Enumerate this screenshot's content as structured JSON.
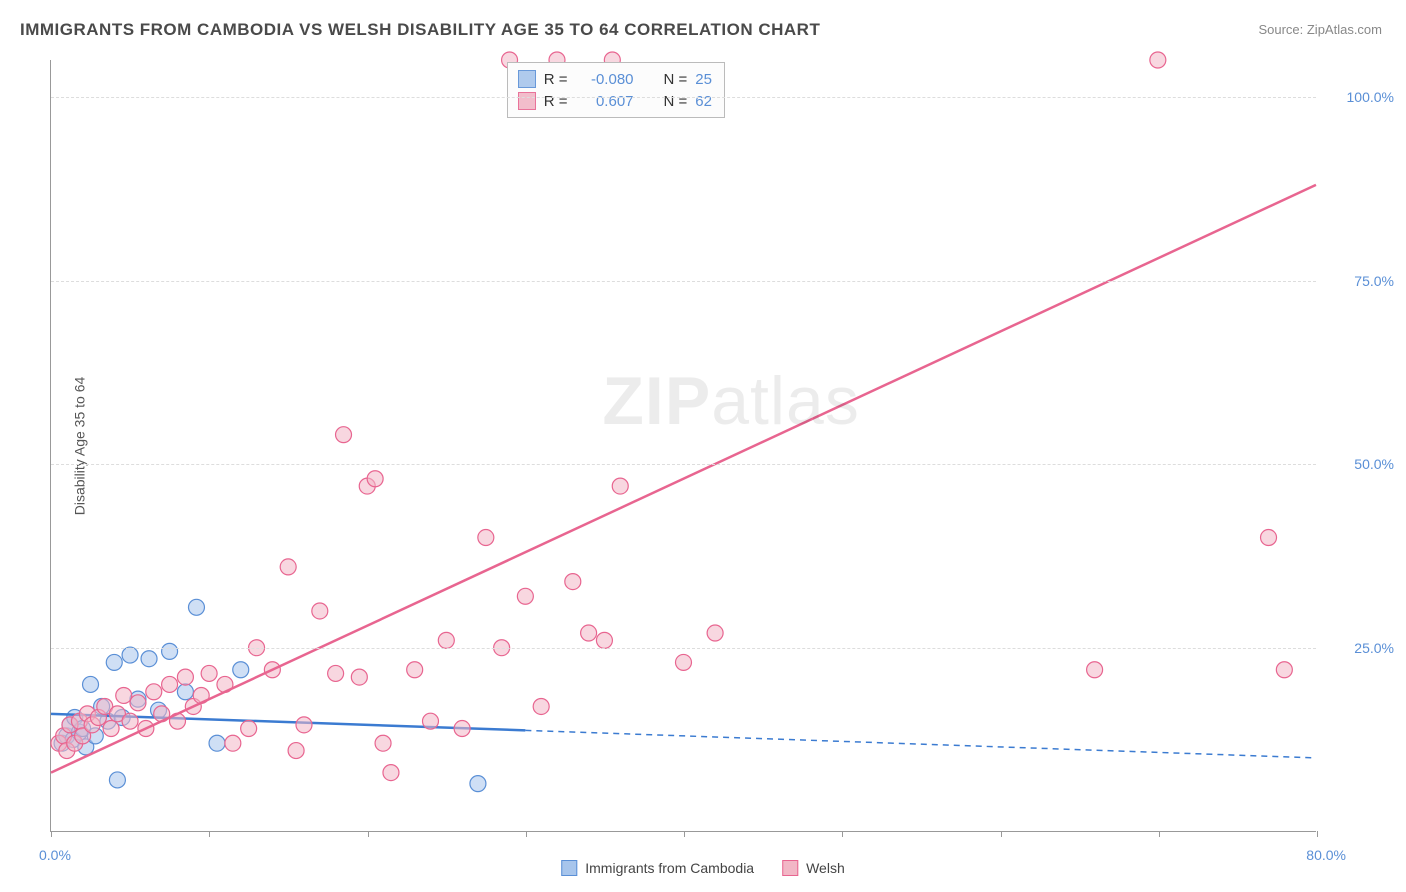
{
  "title": "IMMIGRANTS FROM CAMBODIA VS WELSH DISABILITY AGE 35 TO 64 CORRELATION CHART",
  "source_label": "Source: ",
  "source_name": "ZipAtlas.com",
  "y_axis_label": "Disability Age 35 to 64",
  "watermark_bold": "ZIP",
  "watermark_light": "atlas",
  "chart": {
    "type": "scatter",
    "background_color": "#ffffff",
    "grid_color": "#dddddd",
    "axis_color": "#999999",
    "tick_label_color": "#5a8fd6",
    "xlim": [
      0,
      80
    ],
    "ylim": [
      0,
      105
    ],
    "x_ticks": [
      0,
      10,
      20,
      30,
      40,
      50,
      60,
      70,
      80
    ],
    "x_min_label": "0.0%",
    "x_max_label": "80.0%",
    "y_ticks": [
      {
        "value": 25,
        "label": "25.0%"
      },
      {
        "value": 50,
        "label": "50.0%"
      },
      {
        "value": 75,
        "label": "75.0%"
      },
      {
        "value": 100,
        "label": "100.0%"
      }
    ],
    "series": [
      {
        "id": "cambodia",
        "label": "Immigrants from Cambodia",
        "fill": "#a7c5ec",
        "stroke": "#5a8fd6",
        "fill_opacity": 0.55,
        "marker_radius": 8,
        "R": "-0.080",
        "N": "25",
        "regression": {
          "x1": 0,
          "y1": 16,
          "x2": 80,
          "y2": 10,
          "solid_until_x": 30,
          "color": "#3b7bd1",
          "line_width": 2.5,
          "dash": "6,5"
        },
        "points": [
          {
            "x": 0.7,
            "y": 12
          },
          {
            "x": 1.0,
            "y": 13
          },
          {
            "x": 1.2,
            "y": 14.5
          },
          {
            "x": 1.4,
            "y": 12.5
          },
          {
            "x": 1.5,
            "y": 15.5
          },
          {
            "x": 1.8,
            "y": 13.5
          },
          {
            "x": 2.0,
            "y": 14
          },
          {
            "x": 2.2,
            "y": 11.5
          },
          {
            "x": 2.5,
            "y": 20
          },
          {
            "x": 2.8,
            "y": 13
          },
          {
            "x": 3.2,
            "y": 17
          },
          {
            "x": 3.6,
            "y": 15
          },
          {
            "x": 4.0,
            "y": 23
          },
          {
            "x": 4.2,
            "y": 7
          },
          {
            "x": 4.5,
            "y": 15.5
          },
          {
            "x": 5.0,
            "y": 24
          },
          {
            "x": 5.5,
            "y": 18
          },
          {
            "x": 6.2,
            "y": 23.5
          },
          {
            "x": 6.8,
            "y": 16.5
          },
          {
            "x": 7.5,
            "y": 24.5
          },
          {
            "x": 8.5,
            "y": 19
          },
          {
            "x": 9.2,
            "y": 30.5
          },
          {
            "x": 10.5,
            "y": 12
          },
          {
            "x": 12,
            "y": 22
          },
          {
            "x": 27,
            "y": 6.5
          }
        ]
      },
      {
        "id": "welsh",
        "label": "Welsh",
        "fill": "#f2b7c6",
        "stroke": "#e86590",
        "fill_opacity": 0.55,
        "marker_radius": 8,
        "R": "0.607",
        "N": "62",
        "regression": {
          "x1": 0,
          "y1": 8,
          "x2": 80,
          "y2": 88,
          "solid_until_x": 80,
          "color": "#e86590",
          "line_width": 2.5,
          "dash": null
        },
        "points": [
          {
            "x": 0.5,
            "y": 12
          },
          {
            "x": 0.8,
            "y": 13
          },
          {
            "x": 1.0,
            "y": 11
          },
          {
            "x": 1.2,
            "y": 14.5
          },
          {
            "x": 1.5,
            "y": 12
          },
          {
            "x": 1.8,
            "y": 15
          },
          {
            "x": 2.0,
            "y": 13
          },
          {
            "x": 2.3,
            "y": 16
          },
          {
            "x": 2.6,
            "y": 14.5
          },
          {
            "x": 3.0,
            "y": 15.5
          },
          {
            "x": 3.4,
            "y": 17
          },
          {
            "x": 3.8,
            "y": 14
          },
          {
            "x": 4.2,
            "y": 16
          },
          {
            "x": 4.6,
            "y": 18.5
          },
          {
            "x": 5.0,
            "y": 15
          },
          {
            "x": 5.5,
            "y": 17.5
          },
          {
            "x": 6.0,
            "y": 14
          },
          {
            "x": 6.5,
            "y": 19
          },
          {
            "x": 7.0,
            "y": 16
          },
          {
            "x": 7.5,
            "y": 20
          },
          {
            "x": 8.0,
            "y": 15
          },
          {
            "x": 8.5,
            "y": 21
          },
          {
            "x": 9.0,
            "y": 17
          },
          {
            "x": 9.5,
            "y": 18.5
          },
          {
            "x": 10.0,
            "y": 21.5
          },
          {
            "x": 11.0,
            "y": 20
          },
          {
            "x": 11.5,
            "y": 12
          },
          {
            "x": 12.5,
            "y": 14
          },
          {
            "x": 13.0,
            "y": 25
          },
          {
            "x": 14.0,
            "y": 22
          },
          {
            "x": 15.0,
            "y": 36
          },
          {
            "x": 15.5,
            "y": 11
          },
          {
            "x": 16.0,
            "y": 14.5
          },
          {
            "x": 17.0,
            "y": 30
          },
          {
            "x": 18.0,
            "y": 21.5
          },
          {
            "x": 18.5,
            "y": 54
          },
          {
            "x": 19.5,
            "y": 21
          },
          {
            "x": 20.0,
            "y": 47
          },
          {
            "x": 20.5,
            "y": 48
          },
          {
            "x": 21.0,
            "y": 12
          },
          {
            "x": 21.5,
            "y": 8
          },
          {
            "x": 23.0,
            "y": 22
          },
          {
            "x": 24.0,
            "y": 15
          },
          {
            "x": 25.0,
            "y": 26
          },
          {
            "x": 26.0,
            "y": 14
          },
          {
            "x": 27.5,
            "y": 40
          },
          {
            "x": 28.5,
            "y": 25
          },
          {
            "x": 29.0,
            "y": 105
          },
          {
            "x": 30.0,
            "y": 32
          },
          {
            "x": 31.0,
            "y": 17
          },
          {
            "x": 32.0,
            "y": 105
          },
          {
            "x": 33.0,
            "y": 34
          },
          {
            "x": 34.0,
            "y": 27
          },
          {
            "x": 35.0,
            "y": 26
          },
          {
            "x": 35.5,
            "y": 105
          },
          {
            "x": 36.0,
            "y": 47
          },
          {
            "x": 40.0,
            "y": 23
          },
          {
            "x": 42.0,
            "y": 27
          },
          {
            "x": 66.0,
            "y": 22
          },
          {
            "x": 70.0,
            "y": 105
          },
          {
            "x": 77.0,
            "y": 40
          },
          {
            "x": 78.0,
            "y": 22
          }
        ]
      }
    ],
    "correlation_legend": {
      "R_label": "R =",
      "N_label": "N ="
    },
    "bottom_legend_items": [
      "cambodia",
      "welsh"
    ]
  }
}
